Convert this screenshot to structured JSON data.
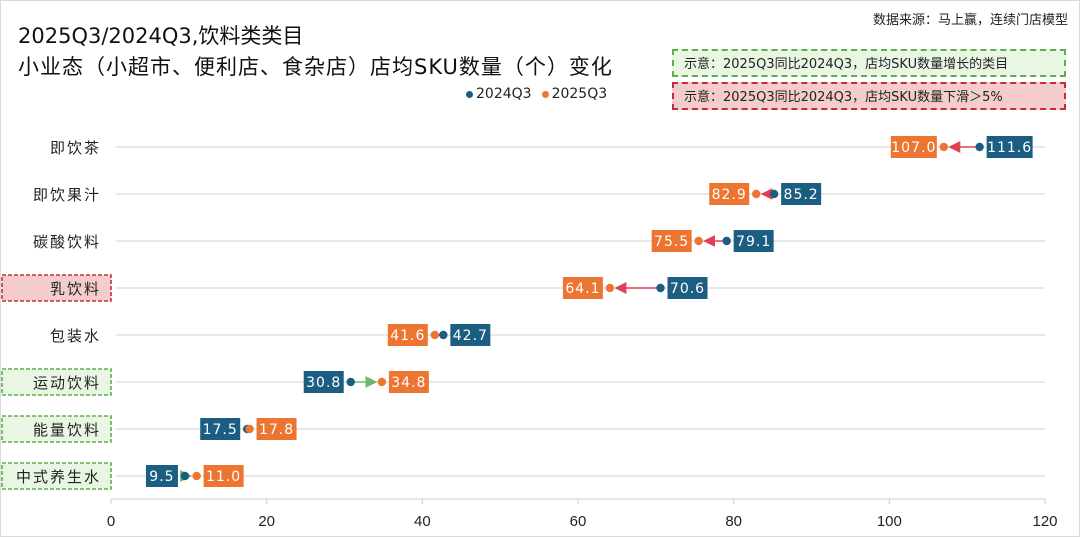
{
  "chart_data": {
    "type": "dumbbell",
    "title": "2025Q3/2024Q3,饮料类类目",
    "subtitle": "小业态（小超市、便利店、食杂店）店均SKU数量（个）变化",
    "source": "数据来源：马上赢，连续门店模型",
    "notes": {
      "increase": "示意：2025Q3同比2024Q3，店均SKU数量增长的类目",
      "decrease": "示意：2025Q3同比2024Q3，店均SKU数量下滑＞5%"
    },
    "categories": [
      "即饮茶",
      "即饮果汁",
      "碳酸饮料",
      "乳饮料",
      "包装水",
      "运动饮料",
      "能量饮料",
      "中式养生水"
    ],
    "highlight": {
      "乳饮料": "decrease",
      "运动饮料": "increase",
      "能量饮料": "increase",
      "中式养生水": "increase"
    },
    "series": [
      {
        "name": "2024Q3",
        "color": "#1b5e82",
        "values": [
          111.6,
          85.2,
          79.1,
          70.6,
          42.7,
          30.8,
          17.5,
          9.5
        ]
      },
      {
        "name": "2025Q3",
        "color": "#ed7532",
        "values": [
          107.0,
          82.9,
          75.5,
          64.1,
          41.6,
          34.8,
          17.8,
          11.0
        ]
      }
    ],
    "labels_2024": [
      "111.6",
      "85.2",
      "79.1",
      "70.6",
      "42.7",
      "30.8",
      "17.5",
      "9.5"
    ],
    "labels_2025": [
      "107.0",
      "82.9",
      "75.5",
      "64.1",
      "41.6",
      "34.8",
      "17.8",
      "11.0"
    ],
    "xlim": [
      0,
      120
    ],
    "xticks": [
      "0",
      "20",
      "40",
      "60",
      "80",
      "100",
      "120"
    ],
    "arrow_colors": {
      "up": "#6cb86c",
      "down": "#e04055"
    },
    "grid": true,
    "legend": "top-center"
  }
}
